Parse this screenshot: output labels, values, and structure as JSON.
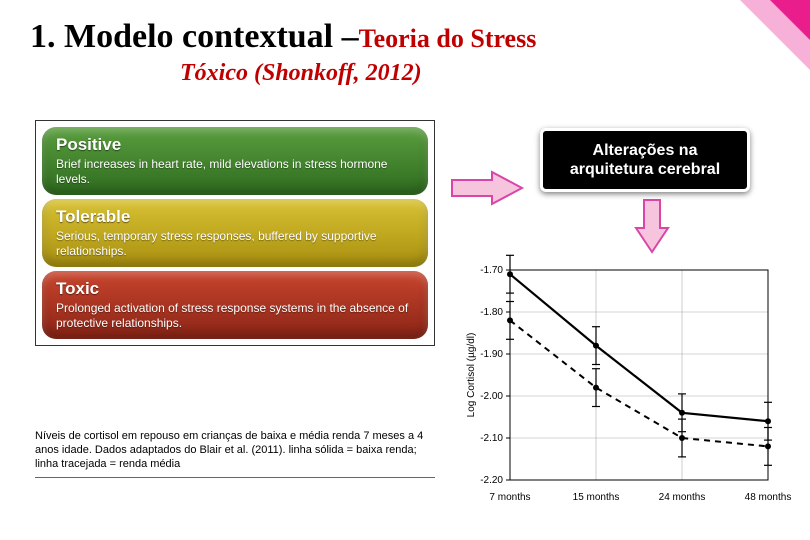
{
  "title": {
    "prefix": "1. Modelo contextual –",
    "suffix": "Teoria do Stress"
  },
  "subtitle": "Tóxico (Shonkoff, 2012)",
  "stress_levels": [
    {
      "label": "Positive",
      "desc": "Brief increases in heart rate, mild elevations in stress hormone levels.",
      "bg_top": "#5a9e3f",
      "bg_bottom": "#2e6b1e"
    },
    {
      "label": "Tolerable",
      "desc": "Serious, temporary stress responses, buffered by supportive relationships.",
      "bg_top": "#d9c233",
      "bg_bottom": "#a88f0f"
    },
    {
      "label": "Toxic",
      "desc": "Prolonged activation of stress response systems in the absence of protective relationships.",
      "bg_top": "#c8452d",
      "bg_bottom": "#8a2416"
    }
  ],
  "callout": "Alterações na arquitetura cerebral",
  "arrow": {
    "fill": "#f6c4dd",
    "stroke": "#d946a8",
    "stroke_width": 2
  },
  "caption": "Níveis de cortisol em repouso em crianças de baixa e média renda 7 meses a 4 anos idade.  Dados adaptados do Blair et al. (2011). linha sólida = baixa renda; linha tracejada = renda média",
  "chart": {
    "type": "line",
    "background_color": "#ffffff",
    "grid_color": "#aaaaaa",
    "axis_color": "#000000",
    "label_fontsize": 10,
    "ylabel": "Log Cortisol (µg/dl)",
    "xlabel_values": [
      "7 months",
      "15 months",
      "24 months",
      "48 months"
    ],
    "ylim": [
      -2.2,
      -1.7
    ],
    "yticks": [
      -1.7,
      -1.8,
      -1.9,
      -2.0,
      -2.1,
      -2.2
    ],
    "series": [
      {
        "name": "solid",
        "color": "#000000",
        "width": 2.2,
        "dash": "none",
        "x": [
          0,
          1,
          2,
          3
        ],
        "y": [
          -1.71,
          -1.88,
          -2.04,
          -2.06
        ],
        "err": [
          0.045,
          0.045,
          0.045,
          0.045
        ]
      },
      {
        "name": "dashed",
        "color": "#000000",
        "width": 2.0,
        "dash": "6 5",
        "x": [
          0,
          1,
          2,
          3
        ],
        "y": [
          -1.82,
          -1.98,
          -2.1,
          -2.12
        ],
        "err": [
          0.045,
          0.045,
          0.045,
          0.045
        ]
      }
    ]
  },
  "accent_color": "#e91e8c"
}
